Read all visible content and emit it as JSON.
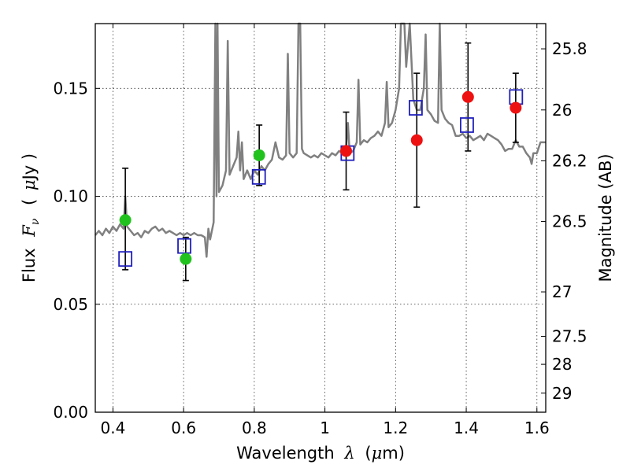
{
  "chart_data": {
    "type": "scatter",
    "xlabel_text": "Wavelength",
    "xlabel_symbol": "λ",
    "xlabel_unit_open": "(",
    "xlabel_unit_mu": "μ",
    "xlabel_unit_rest": "m)",
    "ylabel_text": "Flux",
    "ylabel_symbol": "F",
    "ylabel_subscript": "ν",
    "ylabel_unit_open": "(",
    "ylabel_unit_mu": "μ",
    "ylabel_unit_rest": "Jy )",
    "y2label": "Magnitude (AB)",
    "xlim": [
      0.35,
      1.625
    ],
    "ylim": [
      0.0,
      0.18
    ],
    "xticks": [
      0.4,
      0.6,
      0.8,
      1.0,
      1.2,
      1.4,
      1.6
    ],
    "xtick_labels": [
      "0.4",
      "0.6",
      "0.8",
      "1",
      "1.2",
      "1.4",
      "1.6"
    ],
    "yticks": [
      0.0,
      0.05,
      0.1,
      0.15
    ],
    "ytick_labels": [
      "0.00",
      "0.05",
      "0.10",
      "0.15"
    ],
    "mag_ticks": [
      25.8,
      26,
      26.2,
      26.5,
      27,
      27.5,
      28,
      29
    ],
    "mag_tick_labels": [
      "25.8",
      "26",
      "26.2",
      "26.5",
      "27",
      "27.5",
      "28",
      "29"
    ],
    "grid": true,
    "colors": {
      "model_line": "#808080",
      "green_points": "#22c21e",
      "red_points": "#ee1111",
      "model_boxes": "#1f1fbd",
      "error_bars": "#000000"
    },
    "model_spectrum": [
      [
        0.35,
        0.082
      ],
      [
        0.36,
        0.084
      ],
      [
        0.37,
        0.082
      ],
      [
        0.38,
        0.085
      ],
      [
        0.39,
        0.083
      ],
      [
        0.4,
        0.086
      ],
      [
        0.41,
        0.084
      ],
      [
        0.42,
        0.087
      ],
      [
        0.43,
        0.085
      ],
      [
        0.435,
        0.1
      ],
      [
        0.44,
        0.086
      ],
      [
        0.45,
        0.084
      ],
      [
        0.46,
        0.082
      ],
      [
        0.47,
        0.083
      ],
      [
        0.48,
        0.081
      ],
      [
        0.49,
        0.084
      ],
      [
        0.5,
        0.083
      ],
      [
        0.51,
        0.085
      ],
      [
        0.52,
        0.086
      ],
      [
        0.53,
        0.084
      ],
      [
        0.54,
        0.085
      ],
      [
        0.55,
        0.083
      ],
      [
        0.56,
        0.084
      ],
      [
        0.57,
        0.083
      ],
      [
        0.58,
        0.082
      ],
      [
        0.59,
        0.083
      ],
      [
        0.6,
        0.082
      ],
      [
        0.61,
        0.083
      ],
      [
        0.62,
        0.082
      ],
      [
        0.63,
        0.083
      ],
      [
        0.64,
        0.082
      ],
      [
        0.65,
        0.082
      ],
      [
        0.66,
        0.081
      ],
      [
        0.665,
        0.072
      ],
      [
        0.67,
        0.085
      ],
      [
        0.675,
        0.08
      ],
      [
        0.685,
        0.088
      ],
      [
        0.69,
        0.185
      ],
      [
        0.693,
        0.1
      ],
      [
        0.696,
        0.185
      ],
      [
        0.7,
        0.102
      ],
      [
        0.71,
        0.105
      ],
      [
        0.72,
        0.112
      ],
      [
        0.725,
        0.172
      ],
      [
        0.73,
        0.11
      ],
      [
        0.74,
        0.114
      ],
      [
        0.75,
        0.118
      ],
      [
        0.755,
        0.13
      ],
      [
        0.76,
        0.112
      ],
      [
        0.765,
        0.125
      ],
      [
        0.77,
        0.108
      ],
      [
        0.78,
        0.112
      ],
      [
        0.79,
        0.108
      ],
      [
        0.8,
        0.112
      ],
      [
        0.81,
        0.11
      ],
      [
        0.82,
        0.114
      ],
      [
        0.83,
        0.112
      ],
      [
        0.84,
        0.115
      ],
      [
        0.85,
        0.117
      ],
      [
        0.86,
        0.125
      ],
      [
        0.87,
        0.118
      ],
      [
        0.88,
        0.117
      ],
      [
        0.89,
        0.119
      ],
      [
        0.895,
        0.166
      ],
      [
        0.9,
        0.12
      ],
      [
        0.91,
        0.118
      ],
      [
        0.92,
        0.12
      ],
      [
        0.925,
        0.19
      ],
      [
        0.93,
        0.185
      ],
      [
        0.935,
        0.122
      ],
      [
        0.94,
        0.12
      ],
      [
        0.95,
        0.119
      ],
      [
        0.96,
        0.118
      ],
      [
        0.97,
        0.119
      ],
      [
        0.98,
        0.118
      ],
      [
        0.99,
        0.12
      ],
      [
        1.0,
        0.119
      ],
      [
        1.01,
        0.118
      ],
      [
        1.02,
        0.12
      ],
      [
        1.03,
        0.119
      ],
      [
        1.04,
        0.121
      ],
      [
        1.05,
        0.12
      ],
      [
        1.06,
        0.122
      ],
      [
        1.065,
        0.134
      ],
      [
        1.07,
        0.12
      ],
      [
        1.08,
        0.121
      ],
      [
        1.09,
        0.125
      ],
      [
        1.095,
        0.154
      ],
      [
        1.1,
        0.124
      ],
      [
        1.11,
        0.126
      ],
      [
        1.12,
        0.125
      ],
      [
        1.13,
        0.127
      ],
      [
        1.14,
        0.128
      ],
      [
        1.15,
        0.13
      ],
      [
        1.16,
        0.128
      ],
      [
        1.17,
        0.134
      ],
      [
        1.175,
        0.153
      ],
      [
        1.18,
        0.132
      ],
      [
        1.19,
        0.134
      ],
      [
        1.2,
        0.14
      ],
      [
        1.21,
        0.15
      ],
      [
        1.215,
        0.185
      ],
      [
        1.225,
        0.185
      ],
      [
        1.23,
        0.16
      ],
      [
        1.24,
        0.185
      ],
      [
        1.25,
        0.145
      ],
      [
        1.26,
        0.14
      ],
      [
        1.27,
        0.14
      ],
      [
        1.28,
        0.15
      ],
      [
        1.285,
        0.175
      ],
      [
        1.29,
        0.14
      ],
      [
        1.3,
        0.138
      ],
      [
        1.31,
        0.135
      ],
      [
        1.32,
        0.134
      ],
      [
        1.325,
        0.185
      ],
      [
        1.33,
        0.14
      ],
      [
        1.34,
        0.136
      ],
      [
        1.35,
        0.134
      ],
      [
        1.36,
        0.133
      ],
      [
        1.37,
        0.128
      ],
      [
        1.38,
        0.128
      ],
      [
        1.39,
        0.129
      ],
      [
        1.4,
        0.127
      ],
      [
        1.41,
        0.128
      ],
      [
        1.42,
        0.126
      ],
      [
        1.43,
        0.127
      ],
      [
        1.44,
        0.128
      ],
      [
        1.45,
        0.126
      ],
      [
        1.46,
        0.129
      ],
      [
        1.47,
        0.128
      ],
      [
        1.48,
        0.127
      ],
      [
        1.49,
        0.126
      ],
      [
        1.5,
        0.124
      ],
      [
        1.51,
        0.121
      ],
      [
        1.52,
        0.122
      ],
      [
        1.53,
        0.122
      ],
      [
        1.54,
        0.126
      ],
      [
        1.55,
        0.123
      ],
      [
        1.56,
        0.123
      ],
      [
        1.57,
        0.12
      ],
      [
        1.58,
        0.118
      ],
      [
        1.585,
        0.115
      ],
      [
        1.59,
        0.12
      ],
      [
        1.6,
        0.12
      ],
      [
        1.61,
        0.125
      ],
      [
        1.625,
        0.125
      ]
    ],
    "green_points": [
      {
        "x": 0.435,
        "y": 0.089,
        "yerr_low": 0.023,
        "yerr_high": 0.024
      },
      {
        "x": 0.606,
        "y": 0.071,
        "yerr_low": 0.01,
        "yerr_high": 0.01
      },
      {
        "x": 0.814,
        "y": 0.119,
        "yerr_low": 0.014,
        "yerr_high": 0.014
      }
    ],
    "red_points": [
      {
        "x": 1.06,
        "y": 0.121,
        "yerr_low": 0.018,
        "yerr_high": 0.018
      },
      {
        "x": 1.26,
        "y": 0.126,
        "yerr_low": 0.031,
        "yerr_high": 0.031
      },
      {
        "x": 1.405,
        "y": 0.146,
        "yerr_low": 0.025,
        "yerr_high": 0.025
      },
      {
        "x": 1.54,
        "y": 0.141,
        "yerr_low": 0.016,
        "yerr_high": 0.016
      }
    ],
    "model_points": [
      {
        "x": 0.435,
        "y": 0.071
      },
      {
        "x": 0.602,
        "y": 0.077
      },
      {
        "x": 0.813,
        "y": 0.109
      },
      {
        "x": 1.064,
        "y": 0.12
      },
      {
        "x": 1.257,
        "y": 0.141
      },
      {
        "x": 1.402,
        "y": 0.133
      },
      {
        "x": 1.541,
        "y": 0.146
      }
    ]
  }
}
